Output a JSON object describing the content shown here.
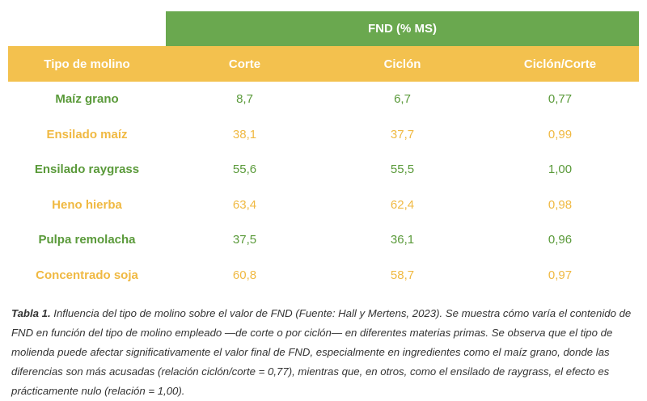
{
  "table": {
    "group_header": "FND (% MS)",
    "columns": [
      "Tipo de molino",
      "Corte",
      "Ciclón",
      "Ciclón/Corte"
    ],
    "rows": [
      {
        "name": "Maíz grano",
        "corte": "8,7",
        "ciclon": "6,7",
        "ratio": "0,77",
        "color": "#5a9a3a"
      },
      {
        "name": "Ensilado maíz",
        "corte": "38,1",
        "ciclon": "37,7",
        "ratio": "0,99",
        "color": "#f0b942"
      },
      {
        "name": "Ensilado raygrass",
        "corte": "55,6",
        "ciclon": "55,5",
        "ratio": "1,00",
        "color": "#5a9a3a"
      },
      {
        "name": "Heno hierba",
        "corte": "63,4",
        "ciclon": "62,4",
        "ratio": "0,98",
        "color": "#f0b942"
      },
      {
        "name": "Pulpa remolacha",
        "corte": "37,5",
        "ciclon": "36,1",
        "ratio": "0,96",
        "color": "#5a9a3a"
      },
      {
        "name": "Concentrado soja",
        "corte": "60,8",
        "ciclon": "58,7",
        "ratio": "0,97",
        "color": "#f0b942"
      }
    ]
  },
  "caption": {
    "label": "Tabla 1.",
    "text": "Influencia del tipo de molino sobre el valor de FND (Fuente: Hall y Mertens, 2023). Se muestra cómo varía el contenido de FND en función del tipo de molino empleado —de corte o por ciclón— en diferentes materias primas. Se observa que el tipo de molienda puede afectar significativamente el valor final de FND, especialmente en ingredientes como el maíz grano, donde las diferencias son más acusadas (relación ciclón/corte = 0,77), mientras que, en otros, como el ensilado de raygrass, el efecto es prácticamente nulo (relación = 1,00)."
  },
  "colors": {
    "green_header": "#6aa84f",
    "yellow_header": "#f3c14e",
    "green_text": "#5a9a3a",
    "yellow_text": "#f0b942"
  }
}
